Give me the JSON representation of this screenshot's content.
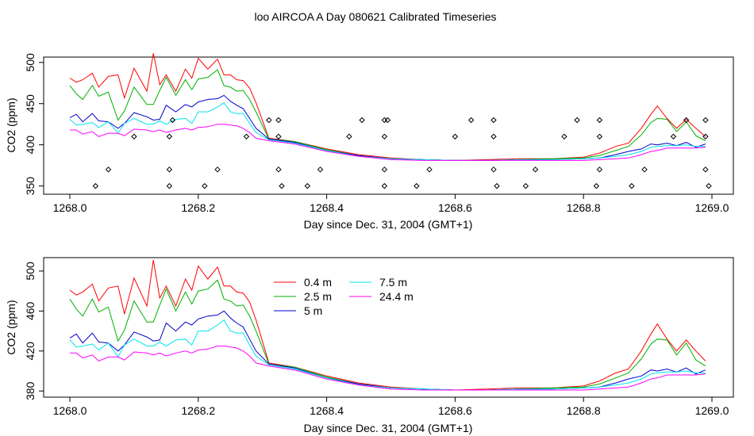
{
  "page_title": "loo AIRCOA A  Day 080621  Calibrated Timeseries",
  "chart_data": [
    {
      "type": "line",
      "panel": "top",
      "ylabel": "CO2 (ppm)",
      "xlabel": "Day since Dec. 31, 2004 (GMT+1)",
      "xlim": [
        1268.0,
        1269.0
      ],
      "ylim": [
        340,
        520
      ],
      "x_ticks": [
        1268.0,
        1268.2,
        1268.4,
        1268.6,
        1268.8,
        1269.0
      ],
      "x_tick_labels": [
        "1268.0",
        "1268.2",
        "1268.4",
        "1268.6",
        "1268.8",
        "1269.0"
      ],
      "y_ticks": [
        350,
        400,
        450,
        500
      ],
      "y_tick_labels": [
        "350",
        "400",
        "450",
        "500"
      ],
      "colors": {
        "0.4 m": "#ff0000",
        "2.5 m": "#00b000",
        "5 m": "#0000cc",
        "7.5 m": "#00e5ee",
        "24.4 m": "#ff00ff"
      },
      "points": {
        "marker": "diamond",
        "x": [
          1268.04,
          1268.06,
          1268.1,
          1268.155,
          1268.155,
          1268.155,
          1268.16,
          1268.21,
          1268.23,
          1268.275,
          1268.31,
          1268.325,
          1268.325,
          1268.325,
          1268.33,
          1268.37,
          1268.39,
          1268.435,
          1268.455,
          1268.49,
          1268.49,
          1268.49,
          1268.49,
          1268.495,
          1268.54,
          1268.56,
          1268.6,
          1268.625,
          1268.66,
          1268.66,
          1268.66,
          1268.665,
          1268.71,
          1268.725,
          1268.77,
          1268.79,
          1268.82,
          1268.825,
          1268.825,
          1268.825,
          1268.875,
          1268.895,
          1268.94,
          1268.96,
          1268.99,
          1268.99,
          1268.99,
          1268.995
        ],
        "y": [
          350,
          370,
          410,
          350,
          370,
          410,
          430,
          350,
          370,
          410,
          430,
          370,
          410,
          430,
          350,
          350,
          370,
          410,
          430,
          350,
          370,
          410,
          430,
          430,
          350,
          370,
          410,
          430,
          370,
          410,
          430,
          350,
          350,
          370,
          410,
          430,
          350,
          370,
          410,
          430,
          350,
          370,
          410,
          430,
          370,
          410,
          430,
          350
        ]
      }
    },
    {
      "type": "line",
      "panel": "bottom",
      "ylabel": "CO2 (ppm)",
      "xlabel": "Day since Dec. 31, 2004 (GMT+1)",
      "xlim": [
        1268.0,
        1269.0
      ],
      "ylim": [
        377,
        515
      ],
      "x_ticks": [
        1268.0,
        1268.2,
        1268.4,
        1268.6,
        1268.8,
        1269.0
      ],
      "x_tick_labels": [
        "1268.0",
        "1268.2",
        "1268.4",
        "1268.6",
        "1268.8",
        "1269.0"
      ],
      "y_ticks": [
        380,
        420,
        460,
        500
      ],
      "y_tick_labels": [
        "380",
        "420",
        "460",
        "500"
      ],
      "legend": {
        "placement": "top-left",
        "entries": [
          {
            "label": "0.4 m",
            "color": "#ff0000"
          },
          {
            "label": "2.5 m",
            "color": "#00b000"
          },
          {
            "label": "5 m",
            "color": "#0000cc"
          },
          {
            "label": "7.5 m",
            "color": "#00e5ee"
          },
          {
            "label": "24.4 m",
            "color": "#ff00ff"
          }
        ]
      }
    }
  ],
  "series_data": {
    "x": [
      1268.0,
      1268.01,
      1268.02,
      1268.035,
      1268.045,
      1268.06,
      1268.075,
      1268.085,
      1268.1,
      1268.12,
      1268.13,
      1268.14,
      1268.15,
      1268.165,
      1268.18,
      1268.19,
      1268.2,
      1268.215,
      1268.23,
      1268.24,
      1268.25,
      1268.26,
      1268.27,
      1268.28,
      1268.29,
      1268.31,
      1268.35,
      1268.4,
      1268.45,
      1268.5,
      1268.55,
      1268.6,
      1268.65,
      1268.7,
      1268.75,
      1268.8,
      1268.825,
      1268.85,
      1268.87,
      1268.89,
      1268.905,
      1268.915,
      1268.93,
      1268.945,
      1268.96,
      1268.975,
      1268.99
    ],
    "series": [
      {
        "name": "0.4 m",
        "values": [
          481,
          476,
          479,
          487,
          470,
          483,
          485,
          457,
          493,
          465,
          511,
          473,
          485,
          465,
          492,
          481,
          505,
          492,
          504,
          485,
          485,
          479,
          478,
          469,
          451,
          408,
          404,
          395,
          388,
          384,
          382,
          381,
          382,
          383,
          383,
          385,
          390,
          398,
          402,
          420,
          437,
          447,
          432,
          420,
          431,
          420,
          410
        ]
      },
      {
        "name": "2.5 m",
        "values": [
          472,
          462,
          455,
          472,
          459,
          464,
          430,
          441,
          470,
          449,
          449,
          466,
          482,
          460,
          479,
          467,
          480,
          482,
          491,
          472,
          470,
          465,
          466,
          455,
          440,
          407,
          404,
          394,
          387,
          383,
          382,
          381,
          381,
          382,
          383,
          384,
          387,
          393,
          398,
          412,
          427,
          432,
          431,
          416,
          428,
          411,
          405
        ]
      },
      {
        "name": "5 m",
        "values": [
          433,
          437,
          428,
          438,
          429,
          428,
          420,
          426,
          439,
          434,
          430,
          431,
          448,
          440,
          449,
          446,
          452,
          455,
          456,
          460,
          453,
          448,
          444,
          432,
          420,
          407,
          403,
          393,
          387,
          383,
          382,
          381,
          381,
          382,
          382,
          383,
          384,
          388,
          392,
          395,
          401,
          400,
          402,
          399,
          403,
          397,
          401
        ]
      },
      {
        "name": "7.5 m",
        "values": [
          431,
          424,
          425,
          427,
          421,
          428,
          414,
          426,
          432,
          425,
          425,
          429,
          425,
          431,
          432,
          426,
          440,
          440,
          446,
          451,
          440,
          438,
          438,
          426,
          415,
          406,
          402,
          393,
          386,
          383,
          382,
          381,
          381,
          382,
          382,
          383,
          384,
          386,
          388,
          392,
          397,
          398,
          399,
          399,
          400,
          398,
          398
        ]
      },
      {
        "name": "24.4 m",
        "values": [
          418,
          418,
          413,
          416,
          410,
          414,
          414,
          411,
          419,
          418,
          416,
          418,
          415,
          418,
          420,
          418,
          421,
          422,
          425,
          425,
          424,
          423,
          420,
          415,
          408,
          405,
          401,
          392,
          386,
          382,
          381,
          381,
          381,
          381,
          381,
          381,
          382,
          383,
          384,
          388,
          392,
          393,
          396,
          396,
          396,
          396,
          397
        ]
      }
    ]
  }
}
